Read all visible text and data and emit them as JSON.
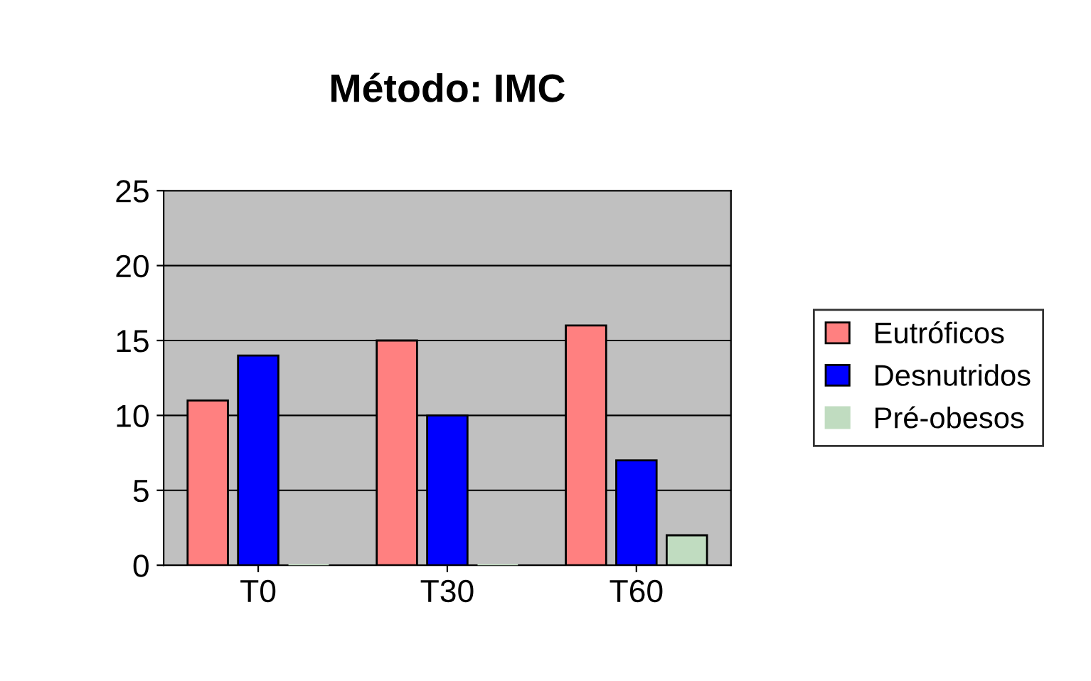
{
  "chart_data": {
    "type": "bar",
    "title": "Método: IMC",
    "categories": [
      "T0",
      "T30",
      "T60"
    ],
    "series": [
      {
        "name": "Eutróficos",
        "color": "#ff8080",
        "values": [
          11,
          15,
          16
        ]
      },
      {
        "name": "Desnutridos",
        "color": "#0000ff",
        "values": [
          14,
          10,
          7
        ]
      },
      {
        "name": "Pré-obesos",
        "color": "#c0dcc0",
        "values": [
          0,
          0,
          2
        ]
      }
    ],
    "ylim": [
      0,
      25
    ],
    "yticks": [
      0,
      5,
      10,
      15,
      20,
      25
    ],
    "grid": "y",
    "legend": "right"
  }
}
